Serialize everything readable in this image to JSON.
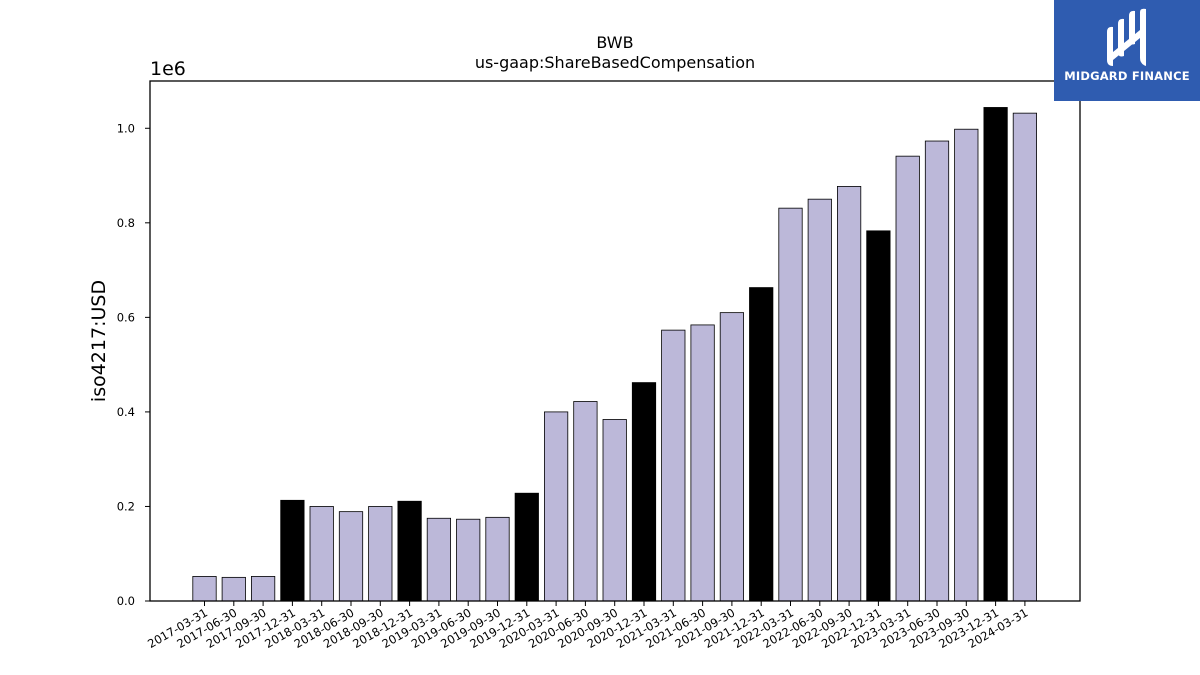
{
  "chart_data": {
    "type": "bar",
    "title": "BWB",
    "subtitle": "us-gaap:ShareBasedCompensation",
    "ylabel": "iso4217:USD",
    "xlabel": "",
    "y_multiplier_label": "1e6",
    "ylim": [
      0,
      1100000
    ],
    "yticks": [
      0,
      200000,
      400000,
      600000,
      800000,
      1000000
    ],
    "ytick_labels": [
      "0.0",
      "0.2",
      "0.4",
      "0.6",
      "0.8",
      "1.0"
    ],
    "grid": false,
    "categories": [
      "2017-03-31",
      "2017-06-30",
      "2017-09-30",
      "2017-12-31",
      "2018-03-31",
      "2018-06-30",
      "2018-09-30",
      "2018-12-31",
      "2019-03-31",
      "2019-06-30",
      "2019-09-30",
      "2019-12-31",
      "2020-03-31",
      "2020-06-30",
      "2020-09-30",
      "2020-12-31",
      "2021-03-31",
      "2021-06-30",
      "2021-09-30",
      "2021-12-31",
      "2022-03-31",
      "2022-06-30",
      "2022-09-30",
      "2022-12-31",
      "2023-03-31",
      "2023-06-30",
      "2023-09-30",
      "2023-12-31",
      "2024-03-31"
    ],
    "values": [
      52000,
      50000,
      52000,
      213000,
      200000,
      189000,
      200000,
      211000,
      175000,
      173000,
      177000,
      228000,
      400000,
      422000,
      384000,
      462000,
      573000,
      584000,
      610000,
      663000,
      831000,
      850000,
      877000,
      783000,
      941000,
      973000,
      998000,
      1044000,
      1032000
    ],
    "bar_colors": [
      "#bcb8d9",
      "#bcb8d9",
      "#bcb8d9",
      "#000000",
      "#bcb8d9",
      "#bcb8d9",
      "#bcb8d9",
      "#000000",
      "#bcb8d9",
      "#bcb8d9",
      "#bcb8d9",
      "#000000",
      "#bcb8d9",
      "#bcb8d9",
      "#bcb8d9",
      "#000000",
      "#bcb8d9",
      "#bcb8d9",
      "#bcb8d9",
      "#000000",
      "#bcb8d9",
      "#bcb8d9",
      "#bcb8d9",
      "#000000",
      "#bcb8d9",
      "#bcb8d9",
      "#bcb8d9",
      "#000000",
      "#bcb8d9"
    ]
  },
  "logo": {
    "text": "MIDGARD FINANCE",
    "color": "#2f5cb0"
  }
}
